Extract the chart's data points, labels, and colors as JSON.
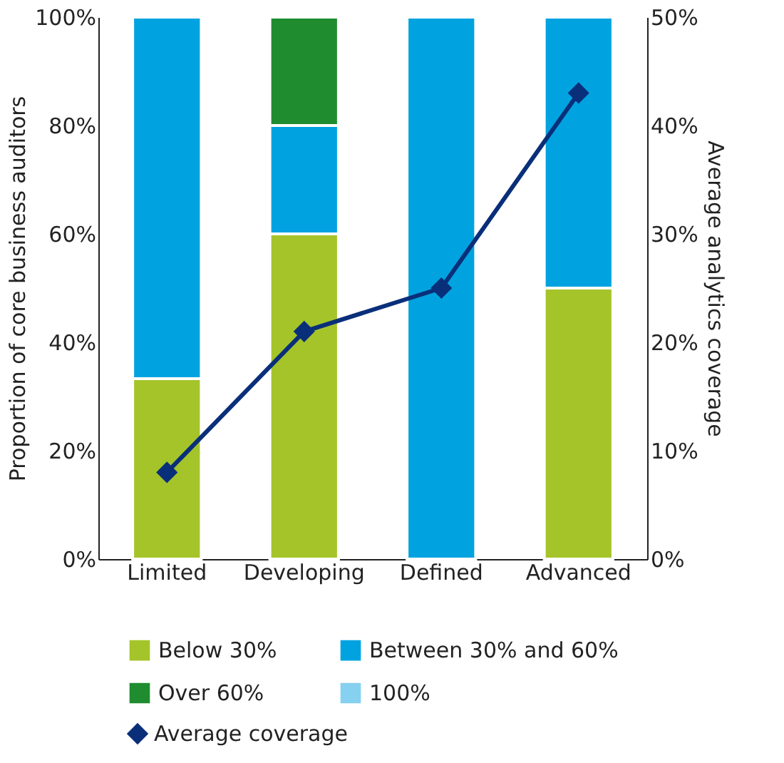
{
  "chart_data": {
    "type": "bar",
    "stacked": true,
    "categories": [
      "Limited",
      "Developing",
      "Defined",
      "Advanced"
    ],
    "ylabel": "Proportion of core business auditors",
    "y2label": "Average analytics coverage",
    "ylim": [
      0,
      100
    ],
    "yticks": [
      {
        "value": 0,
        "label": "0%"
      },
      {
        "value": 20,
        "label": "20%"
      },
      {
        "value": 40,
        "label": "40%"
      },
      {
        "value": 60,
        "label": "60%"
      },
      {
        "value": 80,
        "label": "80%"
      },
      {
        "value": 100,
        "label": "100%"
      }
    ],
    "y2lim": [
      0,
      50
    ],
    "y2ticks": [
      {
        "value": 0,
        "label": "0%"
      },
      {
        "value": 10,
        "label": "10%"
      },
      {
        "value": 20,
        "label": "20%"
      },
      {
        "value": 30,
        "label": "30%"
      },
      {
        "value": 40,
        "label": "40%"
      },
      {
        "value": 50,
        "label": "50%"
      }
    ],
    "series": [
      {
        "name": "Below 30%",
        "color": "#a5c42a",
        "values": [
          33.3,
          60,
          0,
          50
        ]
      },
      {
        "name": "Between 30% and 60%",
        "color": "#00a3e0",
        "values": [
          66.7,
          20,
          100,
          50
        ]
      },
      {
        "name": "Over 60%",
        "color": "#1e8c2f",
        "values": [
          0,
          20,
          0,
          0
        ]
      },
      {
        "name": "100%",
        "color": "#86d0f0",
        "values": [
          0,
          0,
          0,
          0
        ]
      },
      {
        "name": "Average coverage",
        "color": "#0a2f7a",
        "type": "line",
        "axis": "y2",
        "marker": "diamond",
        "values": [
          8,
          21,
          25,
          43
        ]
      }
    ],
    "grid": false,
    "legend": "bottom"
  }
}
